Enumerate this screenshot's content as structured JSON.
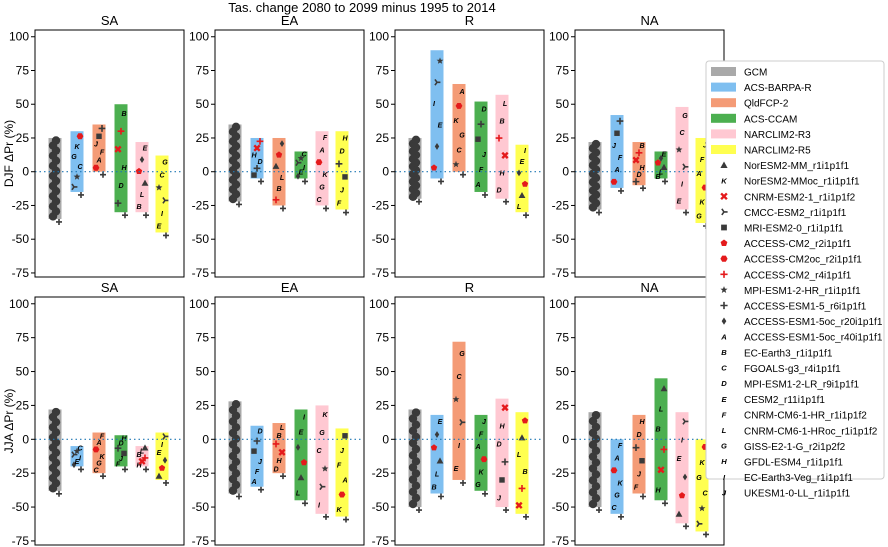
{
  "title": "Tas. change 2080 to 2099 minus 1995 to 2014",
  "colors": {
    "GCM": "#a9a9a9",
    "ACS-BARPA-R": "#7fbff0",
    "QldFCP-2": "#f49b76",
    "ACS-CCAM": "#4caf50",
    "NARCLIM2-R3": "#ffc8d2",
    "NARCLIM2-R5": "#ffff50",
    "zero_line": "#1f77b4",
    "marker_gcm": "#3a3a3a",
    "marker_red": "#e41a1c"
  },
  "legend": {
    "placement": "right",
    "ensembles": [
      "GCM",
      "ACS-BARPA-R",
      "QldFCP-2",
      "ACS-CCAM",
      "NARCLIM2-R3",
      "NARCLIM2-R5"
    ],
    "models": [
      {
        "label": "NorESM2-MM_r1i1p1f1",
        "symbol": "triangle-up"
      },
      {
        "label": "NorESM2-MMoc_r1i1p1f1",
        "symbol": "letter-K"
      },
      {
        "label": "CNRM-ESM2-1_r1i1p1f2",
        "symbol": "x-red"
      },
      {
        "label": "CMCC-ESM2_r1i1p1f1",
        "symbol": "tri-right"
      },
      {
        "label": "MRI-ESM2-0_r1i1p1f1",
        "symbol": "square"
      },
      {
        "label": "ACCESS-CM2_r2i1p1f1",
        "symbol": "pentagon-red"
      },
      {
        "label": "ACCESS-CM2oc_r2i1p1f1",
        "symbol": "hexagon-red"
      },
      {
        "label": "ACCESS-CM2_r4i1p1f1",
        "symbol": "plus-red"
      },
      {
        "label": "MPI-ESM1-2-HR_r1i1p1f1",
        "symbol": "star"
      },
      {
        "label": "ACCESS-ESM1-5_r6i1p1f1",
        "symbol": "plus"
      },
      {
        "label": "ACCESS-ESM1-5oc_r20i1p1f1",
        "symbol": "diamond"
      },
      {
        "label": "ACCESS-ESM1-5oc_r40i1p1f1",
        "symbol": "letter-A"
      },
      {
        "label": "EC-Earth3_r1i1p1f1",
        "symbol": "letter-B"
      },
      {
        "label": "FGOALS-g3_r4i1p1f1",
        "symbol": "letter-C"
      },
      {
        "label": "MPI-ESM1-2-LR_r9i1p1f1",
        "symbol": "letter-D"
      },
      {
        "label": "CESM2_r11i1p1f1",
        "symbol": "letter-E-red"
      },
      {
        "label": "CNRM-CM6-1-HR_r1i1p1f2",
        "symbol": "letter-F-red"
      },
      {
        "label": "CNRM-CM6-1-HRoc_r1i1p1f2",
        "symbol": "letter-L-red"
      },
      {
        "label": "GISS-E2-1-G_r2i1p2f2",
        "symbol": "letter-G"
      },
      {
        "label": "GFDL-ESM4_r1i1p1f1",
        "symbol": "letter-H"
      },
      {
        "label": "EC-Earth3-Veg_r1i1p1f1",
        "symbol": "letter-I"
      },
      {
        "label": "UKESM1-0-LL_r1i1p1f1",
        "symbol": "letter-J-red"
      }
    ]
  },
  "chart_data": {
    "type": "bar",
    "title": "Tas. change 2080 to 2099 minus 1995 to 2014",
    "ylim": [
      -78,
      105
    ],
    "yticks": [
      -75,
      -50,
      -25,
      0,
      25,
      50,
      75,
      100
    ],
    "grid": false,
    "zero_line": "dotted",
    "rows": [
      {
        "ylabel": "DJF ΔPr (%)",
        "panels": [
          {
            "title": "SA",
            "bars": [
              {
                "name": "GCM",
                "range": [
                  -35,
                  25
                ]
              },
              {
                "name": "ACS-BARPA-R",
                "range": [
                  -15,
                  30
                ]
              },
              {
                "name": "QldFCP-2",
                "range": [
                  0,
                  35
                ]
              },
              {
                "name": "ACS-CCAM",
                "range": [
                  -30,
                  50
                ]
              },
              {
                "name": "NARCLIM2-R3",
                "range": [
                  -30,
                  22
                ]
              },
              {
                "name": "NARCLIM2-R5",
                "range": [
                  -45,
                  12
                ]
              }
            ]
          },
          {
            "title": "EA",
            "bars": [
              {
                "name": "GCM",
                "range": [
                  -22,
                  35
                ]
              },
              {
                "name": "ACS-BARPA-R",
                "range": [
                  -5,
                  25
                ]
              },
              {
                "name": "QldFCP-2",
                "range": [
                  -25,
                  25
                ]
              },
              {
                "name": "ACS-CCAM",
                "range": [
                  -5,
                  15
                ]
              },
              {
                "name": "NARCLIM2-R3",
                "range": [
                  -25,
                  30
                ]
              },
              {
                "name": "NARCLIM2-R5",
                "range": [
                  -28,
                  30
                ]
              }
            ]
          },
          {
            "title": "R",
            "bars": [
              {
                "name": "GCM",
                "range": [
                  -20,
                  25
                ]
              },
              {
                "name": "ACS-BARPA-R",
                "range": [
                  -5,
                  90
                ]
              },
              {
                "name": "QldFCP-2",
                "range": [
                  0,
                  65
                ]
              },
              {
                "name": "ACS-CCAM",
                "range": [
                  -15,
                  52
                ]
              },
              {
                "name": "NARCLIM2-R3",
                "range": [
                  -20,
                  57
                ]
              },
              {
                "name": "NARCLIM2-R5",
                "range": [
                  -30,
                  20
                ]
              }
            ]
          },
          {
            "title": "NA",
            "bars": [
              {
                "name": "GCM",
                "range": [
                  -28,
                  22
                ]
              },
              {
                "name": "ACS-BARPA-R",
                "range": [
                  -12,
                  42
                ]
              },
              {
                "name": "QldFCP-2",
                "range": [
                  -10,
                  22
                ]
              },
              {
                "name": "ACS-CCAM",
                "range": [
                  -5,
                  15
                ]
              },
              {
                "name": "NARCLIM2-R3",
                "range": [
                  -28,
                  48
                ]
              },
              {
                "name": "NARCLIM2-R5",
                "range": [
                  -38,
                  25
                ]
              }
            ]
          }
        ]
      },
      {
        "ylabel": "JJA ΔPr (%)",
        "panels": [
          {
            "title": "SA",
            "bars": [
              {
                "name": "GCM",
                "range": [
                  -38,
                  22
                ]
              },
              {
                "name": "ACS-BARPA-R",
                "range": [
                  -20,
                  -5
                ]
              },
              {
                "name": "QldFCP-2",
                "range": [
                  -25,
                  5
                ]
              },
              {
                "name": "ACS-CCAM",
                "range": [
                  -20,
                  3
                ]
              },
              {
                "name": "NARCLIM2-R3",
                "range": [
                  -20,
                  -5
                ]
              },
              {
                "name": "NARCLIM2-R5",
                "range": [
                  -30,
                  5
                ]
              }
            ]
          },
          {
            "title": "EA",
            "bars": [
              {
                "name": "GCM",
                "range": [
                  -40,
                  28
                ]
              },
              {
                "name": "ACS-BARPA-R",
                "range": [
                  -35,
                  10
                ]
              },
              {
                "name": "QldFCP-2",
                "range": [
                  -25,
                  12
                ]
              },
              {
                "name": "ACS-CCAM",
                "range": [
                  -45,
                  22
                ]
              },
              {
                "name": "NARCLIM2-R3",
                "range": [
                  -55,
                  25
                ]
              },
              {
                "name": "NARCLIM2-R5",
                "range": [
                  -57,
                  8
                ]
              }
            ]
          },
          {
            "title": "R",
            "bars": [
              {
                "name": "GCM",
                "range": [
                  -50,
                  22
                ]
              },
              {
                "name": "ACS-BARPA-R",
                "range": [
                  -40,
                  18
                ]
              },
              {
                "name": "QldFCP-2",
                "range": [
                  -30,
                  72
                ]
              },
              {
                "name": "ACS-CCAM",
                "range": [
                  -38,
                  18
                ]
              },
              {
                "name": "NARCLIM2-R3",
                "range": [
                  -50,
                  30
                ]
              },
              {
                "name": "NARCLIM2-R5",
                "range": [
                  -55,
                  20
                ]
              }
            ]
          },
          {
            "title": "NA",
            "bars": [
              {
                "name": "GCM",
                "range": [
                  -50,
                  20
                ]
              },
              {
                "name": "ACS-BARPA-R",
                "range": [
                  -55,
                  0
                ]
              },
              {
                "name": "QldFCP-2",
                "range": [
                  -40,
                  18
                ]
              },
              {
                "name": "ACS-CCAM",
                "range": [
                  -45,
                  45
                ]
              },
              {
                "name": "NARCLIM2-R3",
                "range": [
                  -62,
                  20
                ]
              },
              {
                "name": "NARCLIM2-R5",
                "range": [
                  -68,
                  0
                ]
              }
            ]
          }
        ]
      }
    ]
  }
}
